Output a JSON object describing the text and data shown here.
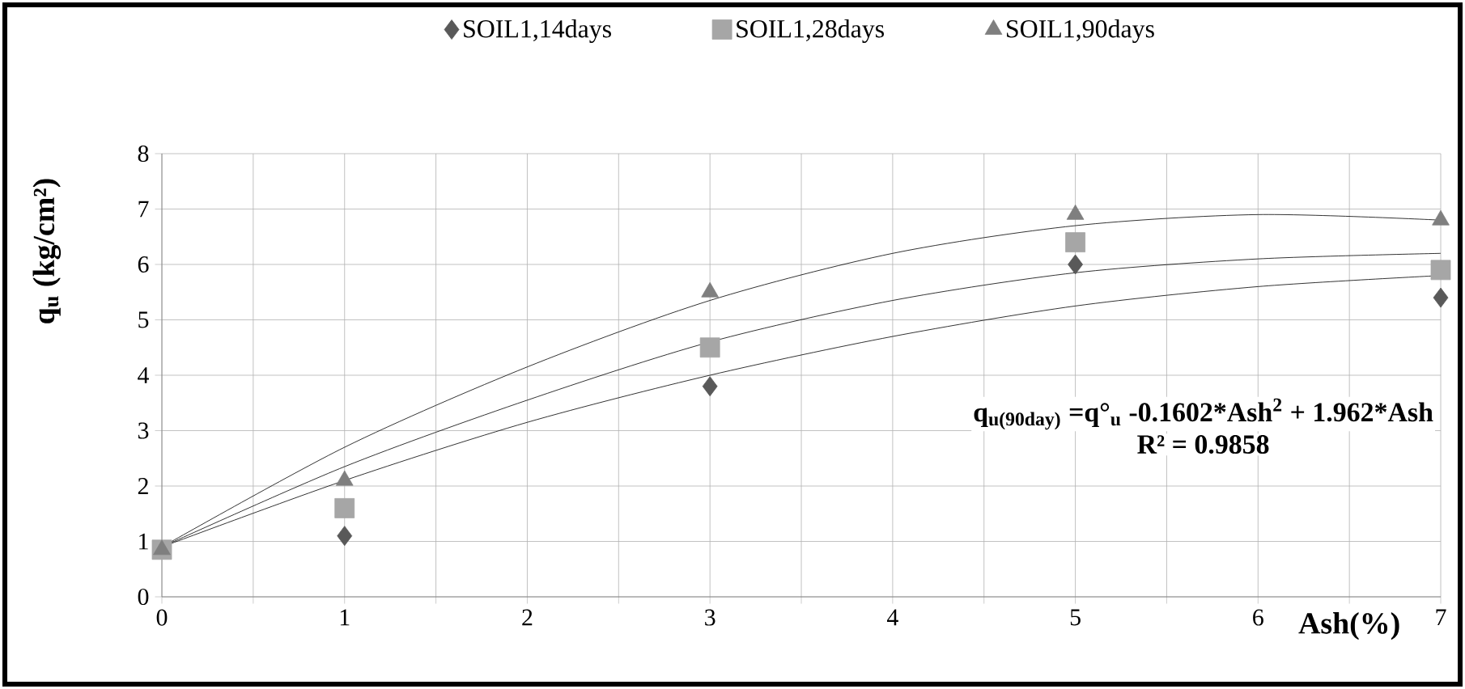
{
  "chart_data": {
    "type": "scatter",
    "xlabel": "Ash(%)",
    "ylabel": "q$_{u}$ (kg/cm²)",
    "x": [
      0,
      1,
      3,
      5,
      7
    ],
    "series": [
      {
        "name": "SOIL1,14days",
        "marker": "diamond",
        "color": "#595959",
        "values": [
          null,
          1.1,
          3.8,
          6.0,
          5.4
        ]
      },
      {
        "name": "SOIL1,28days",
        "marker": "square",
        "color": "#a6a6a6",
        "values": [
          0.85,
          1.6,
          4.5,
          6.4,
          5.9
        ]
      },
      {
        "name": "SOIL1,90days",
        "marker": "triangle",
        "color": "#7f7f7f",
        "values": [
          0.85,
          2.1,
          5.5,
          6.9,
          6.8
        ]
      },
      {
        "type": "line",
        "marker": "none",
        "color": "#000000",
        "x": [
          0,
          1,
          2,
          3,
          4,
          5,
          6,
          7
        ],
        "values": [
          0.9,
          2.1,
          3.15,
          4.0,
          4.7,
          5.25,
          5.6,
          5.8
        ]
      },
      {
        "type": "line",
        "marker": "none",
        "color": "#000000",
        "x": [
          0,
          1,
          2,
          3,
          4,
          5,
          6,
          7
        ],
        "values": [
          0.9,
          2.35,
          3.55,
          4.6,
          5.35,
          5.85,
          6.1,
          6.2
        ]
      },
      {
        "type": "line",
        "marker": "none",
        "color": "#000000",
        "x": [
          0,
          1,
          2,
          3,
          4,
          5,
          6,
          7
        ],
        "values": [
          0.9,
          2.7,
          4.15,
          5.35,
          6.2,
          6.7,
          6.9,
          6.8
        ]
      }
    ],
    "xlim": [
      0,
      7
    ],
    "ylim": [
      0,
      8
    ],
    "xticks": [
      0,
      {
        "value": 0.5,
        "label": null
      },
      1,
      {
        "value": 1.5,
        "label": null
      },
      2,
      {
        "value": 2.5,
        "label": null
      },
      3,
      {
        "value": 3.5,
        "label": null
      },
      4,
      {
        "value": 4.5,
        "label": null
      },
      5,
      {
        "value": 5.5,
        "label": null
      },
      6,
      {
        "value": 6.5,
        "label": null
      },
      7
    ],
    "yticks": [
      0,
      1,
      2,
      3,
      4,
      5,
      6,
      7,
      8
    ],
    "grid": true,
    "legend": "top",
    "annotations": [
      "q$_{u(90day)}$ =q°$_{u}$ -0.1602*Ash$^{2}$ + 1.962*Ash",
      "R² = 0.9858"
    ]
  }
}
